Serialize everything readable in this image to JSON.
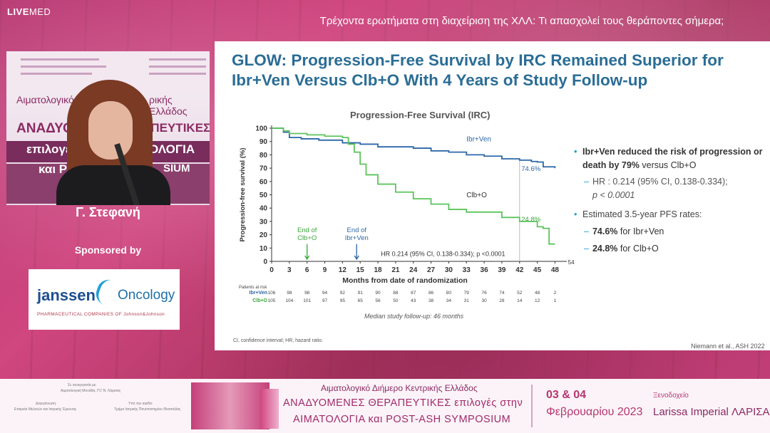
{
  "brand": {
    "live": "LIVE",
    "med": "MED"
  },
  "top_title": "Τρέχοντα ερωτήματα στη διαχείριση της ΧΛΛ: Τι απασχολεί τους θεράποντες σήμερα;",
  "speaker": {
    "name": "Γ. Στεφανή",
    "backdrop_text_1": "Αιματολογικό",
    "backdrop_text_2": "ρικής Ελλάδος",
    "backdrop_text_3": "ΑΝΑΔΥΟΜ",
    "backdrop_text_4": "ΡΑΠΕΥΤΙΚΕΣ",
    "backdrop_text_5": "επιλογέ",
    "backdrop_text_6": "ΟΛΟΓΙΑ",
    "backdrop_text_7": "και P",
    "backdrop_text_8": "SIUM"
  },
  "sponsored_label": "Sponsored by",
  "sponsor": {
    "janssen": "janssen",
    "oncology": "Oncology",
    "tagline": "PHARMACEUTICAL COMPANIES OF Johnson&Johnson"
  },
  "slide": {
    "title": "GLOW: Progression-Free Survival by IRC Remained Superior for Ibr+Ven Versus Clb+O With 4 Years of Study Follow-up",
    "chart_title": "Progression-Free Survival (IRC)",
    "footnote": "CI, confidence interval; HR, hazard ratio.",
    "citation": "Niemann et al., ASH 2022",
    "median_followup": "Median study follow-up: 46 months",
    "bullets": {
      "b1_bold": "Ibr+Ven reduced the risk of  progression or death by 79%",
      "b1_rest": "  versus Clb+O",
      "hr": "HR : 0.214 (95% CI, 0.138-0.334);",
      "p": "p < 0.0001",
      "b2": "Estimated 3.5-year PFS rates:",
      "r1_bold": "74.6%",
      "r1_rest": " for Ibr+Ven",
      "r2_bold": "24.8%",
      "r2_rest": " for Clb+O"
    }
  },
  "chart_data": {
    "type": "line",
    "title": "Progression-Free Survival (IRC)",
    "xlabel": "Months from date of randomization",
    "ylabel": "Progression-free survival (%)",
    "xlim": [
      0,
      50
    ],
    "ylim": [
      0,
      100
    ],
    "x_ticks": [
      0,
      3,
      6,
      9,
      12,
      15,
      18,
      21,
      24,
      27,
      30,
      33,
      36,
      39,
      42,
      45,
      48
    ],
    "y_ticks": [
      0,
      10,
      20,
      30,
      40,
      50,
      60,
      70,
      80,
      90,
      100
    ],
    "series": [
      {
        "name": "Ibr+Ven",
        "color": "#2c67a8",
        "x": [
          0,
          2,
          3,
          5,
          8,
          12,
          15,
          18,
          22,
          24,
          27,
          30,
          33,
          36,
          39,
          42,
          44,
          45,
          46,
          48
        ],
        "y": [
          100,
          97,
          93,
          92,
          91,
          89,
          88,
          86,
          86,
          85,
          83,
          82,
          80,
          79,
          77,
          76,
          75,
          74.6,
          71,
          70
        ]
      },
      {
        "name": "Clb+O",
        "color": "#5cc45c",
        "x": [
          0,
          2,
          3,
          6,
          9,
          12,
          13,
          14,
          15,
          16,
          18,
          21,
          24,
          27,
          30,
          33,
          36,
          39,
          42,
          45,
          46,
          47,
          48
        ],
        "y": [
          100,
          98,
          96,
          95,
          94,
          93,
          88,
          82,
          73,
          65,
          58,
          52,
          47,
          43,
          39,
          37,
          37,
          33,
          30,
          26,
          24.8,
          13,
          13
        ]
      }
    ],
    "annotations": {
      "ibr_label": "Ibr+Ven",
      "clb_label": "Clb+O",
      "ibr_rate": "74.6%",
      "clb_rate": "24.8%",
      "end_clb_1": "End of",
      "end_clb_2": "Clb+O",
      "end_ibr_1": "End of",
      "end_ibr_2": "Ibr+Ven",
      "hr_text": "HR 0.214 (95% CI, 0.138-0.334); p <0.0001",
      "cut_label": "54"
    },
    "risk_table": {
      "header": "Patients at risk",
      "rows": [
        {
          "name": "Ibr+Ven",
          "values": [
            "106",
            "98",
            "98",
            "94",
            "92",
            "91",
            "90",
            "88",
            "87",
            "86",
            "80",
            "79",
            "76",
            "74",
            "52",
            "48",
            "2"
          ]
        },
        {
          "name": "Clb+O",
          "values": [
            "105",
            "104",
            "101",
            "97",
            "95",
            "65",
            "56",
            "50",
            "43",
            "38",
            "34",
            "31",
            "30",
            "28",
            "14",
            "12",
            "1"
          ]
        }
      ]
    }
  },
  "footer": {
    "small_left_1": "Σε συνεργασία με:",
    "small_left_2": "Αιματολογική Μονάδα, Π.Γ.Ν. Λάρισας",
    "small_left_3": "Διοργάνωση:",
    "small_left_4": "Εταιρεία Μελετών και Ιατρικής Έρευνας",
    "small_mid_1": "Υπό την αιγίδα:",
    "small_mid_2": "Τμήμα Ιατρικής Πανεπιστημίου Θεσσαλίας",
    "subtitle": "Αιματολογικό Διήμερο Κεντρικής Ελλάδος",
    "line1": "ΑΝΑΔΥΟΜΕΝΕΣ ΘΕΡΑΠΕΥΤΙΚΕΣ επιλογές στην",
    "line2": "ΑΙΜΑΤΟΛΟΓΙΑ και POST-ASH SYMPOSIUM",
    "date1": "03 & 04",
    "date2": "Φεβρουαρίου 2023",
    "venue1": "Ξενοδοχείο",
    "venue2": "Larissa Imperial ΛΑΡΙΣΑ"
  }
}
